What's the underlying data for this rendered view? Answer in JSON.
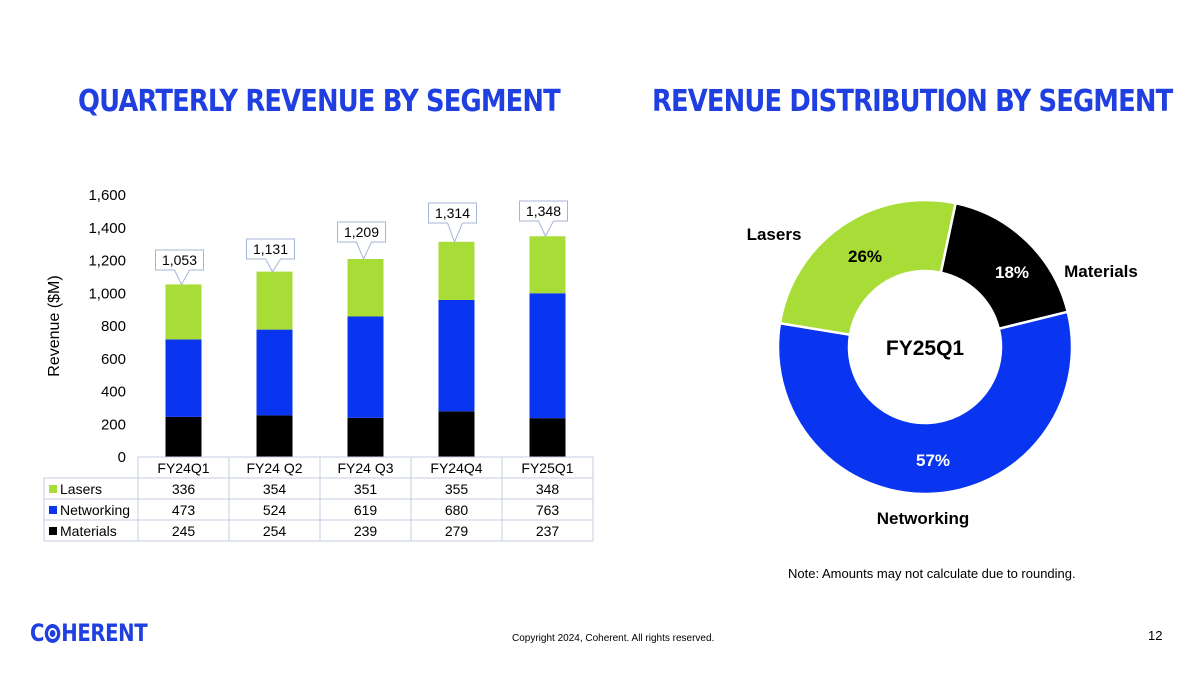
{
  "titles": {
    "left": "QUARTERLY REVENUE BY SEGMENT",
    "right": "REVENUE DISTRIBUTION BY SEGMENT"
  },
  "colors": {
    "title": "#1f3fe0",
    "lasers": "#a8dc37",
    "networking": "#0a35f0",
    "materials": "#000000",
    "table_border": "#c6cce0",
    "callout_border": "#a7b4da"
  },
  "chart_data": [
    {
      "type": "bar",
      "stacked": true,
      "categories": [
        "FY24Q1",
        "FY24 Q2",
        "FY24 Q3",
        "FY24Q4",
        "FY25Q1"
      ],
      "series": [
        {
          "name": "Materials",
          "values": [
            245,
            254,
            239,
            279,
            237
          ],
          "color": "#000000"
        },
        {
          "name": "Networking",
          "values": [
            473,
            524,
            619,
            680,
            763
          ],
          "color": "#0a35f0"
        },
        {
          "name": "Lasers",
          "values": [
            336,
            354,
            351,
            355,
            348
          ],
          "color": "#a8dc37"
        }
      ],
      "totals": [
        1053,
        1131,
        1209,
        1314,
        1348
      ],
      "total_labels": [
        "1,053",
        "1,131",
        "1,209",
        "1,314",
        "1,348"
      ],
      "ylabel": "Revenue ($M)",
      "ylim": [
        0,
        1600
      ],
      "yticks": [
        0,
        200,
        400,
        600,
        800,
        1000,
        1200,
        1400,
        1600
      ],
      "ytick_labels": [
        "0",
        "200",
        "400",
        "600",
        "800",
        "1,000",
        "1,200",
        "1,400",
        "1,600"
      ],
      "data_table": {
        "row_order": [
          "Lasers",
          "Networking",
          "Materials"
        ],
        "rows": [
          {
            "name": "Lasers",
            "values": [
              "336",
              "354",
              "351",
              "355",
              "348"
            ]
          },
          {
            "name": "Networking",
            "values": [
              "473",
              "524",
              "619",
              "680",
              "763"
            ]
          },
          {
            "name": "Materials",
            "values": [
              "245",
              "254",
              "239",
              "279",
              "237"
            ]
          }
        ]
      },
      "grid": false
    },
    {
      "type": "pie",
      "donut": true,
      "center_label": "FY25Q1",
      "slices": [
        {
          "name": "Materials",
          "value": 18,
          "label": "18%",
          "color": "#000000"
        },
        {
          "name": "Networking",
          "value": 57,
          "label": "57%",
          "color": "#0a35f0"
        },
        {
          "name": "Lasers",
          "value": 26,
          "label": "26%",
          "color": "#a8dc37"
        }
      ]
    }
  ],
  "footer": {
    "note": "Note: Amounts may not calculate due to rounding.",
    "copyright": "Copyright 2024, Coherent. All rights reserved.",
    "page_number": "12",
    "logo_left": "C",
    "logo_right": "HERENT"
  }
}
